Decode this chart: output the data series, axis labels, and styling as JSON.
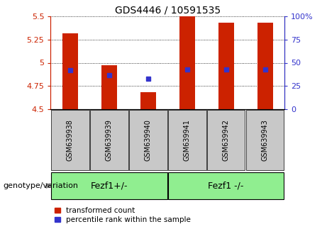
{
  "title": "GDS4446 / 10591535",
  "samples": [
    "GSM639938",
    "GSM639939",
    "GSM639940",
    "GSM639941",
    "GSM639942",
    "GSM639943"
  ],
  "bar_tops": [
    5.32,
    4.97,
    4.68,
    5.5,
    5.43,
    5.43
  ],
  "bar_base": 4.5,
  "blue_y": [
    4.92,
    4.87,
    4.83,
    4.93,
    4.93,
    4.93
  ],
  "ylim_left": [
    4.5,
    5.5
  ],
  "ylim_right": [
    0,
    100
  ],
  "left_yticks": [
    4.5,
    4.75,
    5.0,
    5.25,
    5.5
  ],
  "right_yticks": [
    0,
    25,
    50,
    75,
    100
  ],
  "ytick_left_labels": [
    "4.5",
    "4.75",
    "5",
    "5.25",
    "5.5"
  ],
  "ytick_right_labels": [
    "0",
    "25",
    "50",
    "75",
    "100%"
  ],
  "bar_color": "#CC2200",
  "blue_color": "#3333CC",
  "group1_label": "Fezf1+/-",
  "group2_label": "Fezf1 -/-",
  "group1_indices": [
    0,
    1,
    2
  ],
  "group2_indices": [
    3,
    4,
    5
  ],
  "legend_red_label": "transformed count",
  "legend_blue_label": "percentile rank within the sample",
  "genotype_label": "genotype/variation",
  "bg_xtick": "#C8C8C8",
  "bg_group": "#90EE90",
  "bar_width": 0.4,
  "title_fontsize": 10,
  "tick_fontsize": 8,
  "sample_fontsize": 7,
  "group_fontsize": 9,
  "legend_fontsize": 7.5,
  "genotype_fontsize": 8
}
